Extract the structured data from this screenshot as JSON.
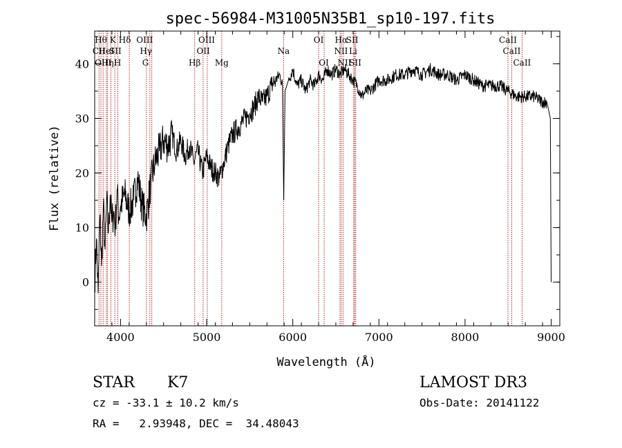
{
  "chart_data": {
    "type": "line",
    "title": "spec-56984-M31005N35B1_sp10-197.fits",
    "xlabel": "Wavelength (Å)",
    "ylabel": "Flux (relative)",
    "xlim": [
      3700,
      9100
    ],
    "ylim": [
      -8,
      46
    ],
    "x_ticks": [
      4000,
      5000,
      6000,
      7000,
      8000,
      9000
    ],
    "y_ticks": [
      0,
      10,
      20,
      30,
      40
    ],
    "line_color": "#000000",
    "marker_color": "#b22222",
    "series": [
      {
        "x": [
          3700,
          3720,
          3740,
          3760,
          3780,
          3800,
          3820,
          3840,
          3860,
          3880,
          3900,
          3920,
          3940,
          3960,
          3980,
          4000,
          4050,
          4100,
          4150,
          4200,
          4250,
          4300,
          4350,
          4400,
          4450,
          4500,
          4550,
          4600,
          4650,
          4700,
          4750,
          4800,
          4850,
          4900,
          4950,
          5000,
          5050,
          5100,
          5150,
          5200,
          5250,
          5300,
          5350,
          5400,
          5450,
          5500,
          5550,
          5600,
          5650,
          5700,
          5750,
          5800,
          5850,
          5880,
          5895,
          5910,
          5950,
          6000,
          6050,
          6100,
          6150,
          6200,
          6250,
          6300,
          6350,
          6400,
          6450,
          6500,
          6550,
          6600,
          6650,
          6700,
          6750,
          6800,
          6850,
          6900,
          6950,
          7000,
          7100,
          7200,
          7300,
          7400,
          7500,
          7600,
          7700,
          7800,
          7900,
          8000,
          8100,
          8200,
          8300,
          8400,
          8500,
          8600,
          8700,
          8800,
          8900,
          8950,
          8990,
          9000
        ],
        "y": [
          0,
          8,
          -2,
          12,
          3,
          14,
          6,
          15,
          9,
          16,
          11,
          13,
          10,
          17,
          12,
          14,
          16,
          13,
          15,
          19,
          14,
          12,
          18,
          22,
          24,
          26,
          25,
          27,
          24,
          26,
          23,
          25,
          22,
          24,
          20,
          23,
          21,
          20,
          19,
          22,
          25,
          27,
          28,
          29,
          30,
          31,
          32,
          34,
          33,
          34,
          36,
          37,
          38,
          36,
          15,
          35,
          37,
          39,
          36,
          37,
          35,
          37,
          36,
          38,
          37,
          39,
          38,
          39,
          38,
          39,
          38,
          37,
          36,
          34,
          35,
          35,
          36,
          37,
          37,
          38,
          38,
          39,
          38,
          39,
          38,
          38,
          37,
          38,
          37,
          36,
          36,
          36,
          35,
          34,
          34,
          34,
          33,
          33,
          30,
          0
        ]
      }
    ],
    "line_labels": [
      {
        "wl": 3750,
        "row": 2,
        "text": "CII"
      },
      {
        "wl": 3772,
        "row": 1,
        "text": "Hθ"
      },
      {
        "wl": 3798,
        "row": 3,
        "text": "OIII"
      },
      {
        "wl": 3835,
        "row": 2,
        "text": "HeI"
      },
      {
        "wl": 3850,
        "row": 3,
        "text": "Hη"
      },
      {
        "wl": 3910,
        "row": 1,
        "text": "K"
      },
      {
        "wl": 3940,
        "row": 2,
        "text": "SII"
      },
      {
        "wl": 3966,
        "row": 3,
        "text": "H"
      },
      {
        "wl": 4050,
        "row": 1,
        "text": "Hδ"
      },
      {
        "wl": 4280,
        "row": 1,
        "text": "OIII"
      },
      {
        "wl": 4295,
        "row": 2,
        "text": "Hγ"
      },
      {
        "wl": 4290,
        "row": 3,
        "text": "G"
      },
      {
        "wl": 4861,
        "row": 3,
        "text": "Hβ"
      },
      {
        "wl": 4960,
        "row": 2,
        "text": "OII"
      },
      {
        "wl": 5000,
        "row": 1,
        "text": "OIII"
      },
      {
        "wl": 5175,
        "row": 3,
        "text": "Mg"
      },
      {
        "wl": 5893,
        "row": 2,
        "text": "Na"
      },
      {
        "wl": 6300,
        "row": 1,
        "text": "OI"
      },
      {
        "wl": 6360,
        "row": 3,
        "text": "OI"
      },
      {
        "wl": 6563,
        "row": 1,
        "text": "Hα"
      },
      {
        "wl": 6560,
        "row": 2,
        "text": "NII"
      },
      {
        "wl": 6600,
        "row": 3,
        "text": "NII"
      },
      {
        "wl": 6690,
        "row": 1,
        "text": "SII"
      },
      {
        "wl": 6700,
        "row": 2,
        "text": "Li"
      },
      {
        "wl": 6725,
        "row": 3,
        "text": "SII"
      },
      {
        "wl": 8498,
        "row": 1,
        "text": "CaII"
      },
      {
        "wl": 8542,
        "row": 2,
        "text": "CaII"
      },
      {
        "wl": 8662,
        "row": 3,
        "text": "CaII"
      }
    ],
    "marker_lines": [
      3750,
      3772,
      3798,
      3835,
      3850,
      3889,
      3934,
      3968,
      4102,
      4300,
      4341,
      4363,
      4861,
      4959,
      5007,
      5175,
      5893,
      6300,
      6364,
      6548,
      6563,
      6584,
      6708,
      6717,
      6731,
      8498,
      8542,
      8662
    ]
  },
  "info": {
    "object_class": "STAR",
    "subclass": "K7",
    "survey": "LAMOST DR3",
    "cz": "cz = -33.1 ± 10.2 km/s",
    "obs_date": "Obs-Date: 20141122",
    "coords": "RA =   2.93948, DEC =  34.48043"
  }
}
